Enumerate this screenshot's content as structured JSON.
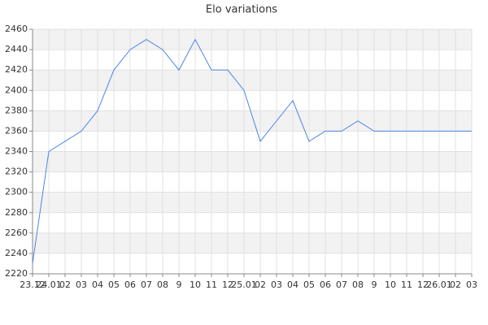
{
  "chart_data": {
    "type": "line",
    "title": "Elo variations",
    "categories": [
      "23.12",
      "24.01",
      "02",
      "03",
      "04",
      "05",
      "06",
      "07",
      "08",
      "9",
      "10",
      "11",
      "12",
      "25.01",
      "02",
      "03",
      "04",
      "05",
      "06",
      "07",
      "08",
      "9",
      "10",
      "11",
      "12",
      "26.01",
      "02",
      "03"
    ],
    "values": [
      2230,
      2340,
      2350,
      2360,
      2380,
      2420,
      2440,
      2450,
      2440,
      2420,
      2450,
      2420,
      2420,
      2400,
      2350,
      2370,
      2390,
      2350,
      2360,
      2360,
      2370,
      2360,
      2360,
      2360,
      2360,
      2360,
      2360,
      2360
    ],
    "color": "#4a86e8",
    "ylim": [
      2220,
      2460
    ],
    "yticks": [
      2220,
      2240,
      2260,
      2280,
      2300,
      2320,
      2340,
      2360,
      2380,
      2400,
      2420,
      2440,
      2460
    ],
    "grid": true
  }
}
